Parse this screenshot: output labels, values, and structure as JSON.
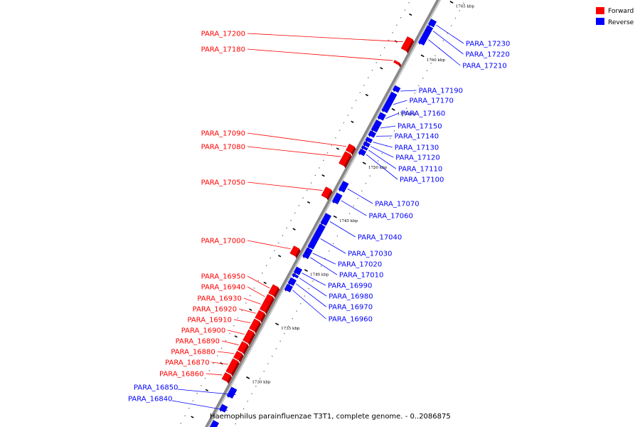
{
  "title": "Haemophilus parainfluenzae T3T1, complete genome. - 0..2086875",
  "legend": [
    {
      "label": "Forward",
      "color": "#ff0000"
    },
    {
      "label": "Reverse",
      "color": "#0000ff"
    }
  ],
  "colors": {
    "forward": "#ff0000",
    "reverse": "#0000ff",
    "backbone": "#888888"
  },
  "ticks": [
    {
      "kbp": 1730,
      "label": "1730 kbp"
    },
    {
      "kbp": 1735,
      "label": "1735 kbp"
    },
    {
      "kbp": 1740,
      "label": "1740 kbp"
    },
    {
      "kbp": 1745,
      "label": "1745 kbp"
    },
    {
      "kbp": 1750,
      "label": "1750 kbp"
    },
    {
      "kbp": 1755,
      "label": "1755 kbp"
    },
    {
      "kbp": 1760,
      "label": "1760 kbp"
    },
    {
      "kbp": 1765,
      "label": "1765 kbp"
    }
  ],
  "genes": [
    {
      "name": "PARA_16840",
      "strand": "reverse",
      "start_kbp": 1726.6,
      "end_kbp": 1727.1
    },
    {
      "name": "PARA_16850",
      "strand": "reverse",
      "start_kbp": 1727.9,
      "end_kbp": 1728.7
    },
    {
      "name": "PARA_16860",
      "strand": "forward",
      "start_kbp": 1728.9,
      "end_kbp": 1729.5
    },
    {
      "name": "PARA_16870",
      "strand": "forward",
      "start_kbp": 1729.6,
      "end_kbp": 1730.8
    },
    {
      "name": "PARA_16880",
      "strand": "forward",
      "start_kbp": 1730.9,
      "end_kbp": 1731.5
    },
    {
      "name": "PARA_16890",
      "strand": "forward",
      "start_kbp": 1731.6,
      "end_kbp": 1732.4
    },
    {
      "name": "PARA_16900",
      "strand": "forward",
      "start_kbp": 1732.5,
      "end_kbp": 1733.5
    },
    {
      "name": "PARA_16910",
      "strand": "forward",
      "start_kbp": 1733.6,
      "end_kbp": 1734.5
    },
    {
      "name": "PARA_16920",
      "strand": "forward",
      "start_kbp": 1734.6,
      "end_kbp": 1735.3
    },
    {
      "name": "PARA_16930",
      "strand": "forward",
      "start_kbp": 1735.4,
      "end_kbp": 1736.2
    },
    {
      "name": "PARA_16940",
      "strand": "forward",
      "start_kbp": 1736.2,
      "end_kbp": 1736.8
    },
    {
      "name": "PARA_16950",
      "strand": "forward",
      "start_kbp": 1736.9,
      "end_kbp": 1737.7
    },
    {
      "name": "PARA_16960",
      "strand": "reverse",
      "start_kbp": 1737.8,
      "end_kbp": 1738.3
    },
    {
      "name": "PARA_16970",
      "strand": "reverse",
      "start_kbp": 1738.4,
      "end_kbp": 1738.9
    },
    {
      "name": "PARA_16980",
      "strand": "reverse",
      "start_kbp": 1739.1,
      "end_kbp": 1739.3
    },
    {
      "name": "PARA_16990",
      "strand": "reverse",
      "start_kbp": 1739.4,
      "end_kbp": 1739.9
    },
    {
      "name": "PARA_17000",
      "strand": "forward",
      "start_kbp": 1740.6,
      "end_kbp": 1741.3
    },
    {
      "name": "PARA_17010",
      "strand": "reverse",
      "start_kbp": 1740.9,
      "end_kbp": 1741.3
    },
    {
      "name": "PARA_17020",
      "strand": "reverse",
      "start_kbp": 1741.3,
      "end_kbp": 1741.7
    },
    {
      "name": "PARA_17030",
      "strand": "reverse",
      "start_kbp": 1741.8,
      "end_kbp": 1743.9
    },
    {
      "name": "PARA_17040",
      "strand": "reverse",
      "start_kbp": 1744.0,
      "end_kbp": 1744.9
    },
    {
      "name": "PARA_17050",
      "strand": "forward",
      "start_kbp": 1746.0,
      "end_kbp": 1746.8
    },
    {
      "name": "PARA_17060",
      "strand": "reverse",
      "start_kbp": 1746.0,
      "end_kbp": 1746.8
    },
    {
      "name": "PARA_17070",
      "strand": "reverse",
      "start_kbp": 1747.1,
      "end_kbp": 1747.9
    },
    {
      "name": "PARA_17080",
      "strand": "forward",
      "start_kbp": 1749.0,
      "end_kbp": 1750.1
    },
    {
      "name": "PARA_17090",
      "strand": "forward",
      "start_kbp": 1750.2,
      "end_kbp": 1750.8
    },
    {
      "name": "PARA_17100",
      "strand": "reverse",
      "start_kbp": 1750.5,
      "end_kbp": 1750.9
    },
    {
      "name": "PARA_17110",
      "strand": "reverse",
      "start_kbp": 1751.0,
      "end_kbp": 1751.2
    },
    {
      "name": "PARA_17120",
      "strand": "reverse",
      "start_kbp": 1751.3,
      "end_kbp": 1751.6
    },
    {
      "name": "PARA_17130",
      "strand": "reverse",
      "start_kbp": 1751.7,
      "end_kbp": 1752.0
    },
    {
      "name": "PARA_17140",
      "strand": "reverse",
      "start_kbp": 1752.2,
      "end_kbp": 1752.6
    },
    {
      "name": "PARA_17150",
      "strand": "reverse",
      "start_kbp": 1752.7,
      "end_kbp": 1753.6
    },
    {
      "name": "PARA_17160",
      "strand": "reverse",
      "start_kbp": 1753.8,
      "end_kbp": 1754.3
    },
    {
      "name": "PARA_17170",
      "strand": "reverse",
      "start_kbp": 1754.5,
      "end_kbp": 1756.2
    },
    {
      "name": "PARA_17180",
      "strand": "forward",
      "start_kbp": 1758.4,
      "end_kbp": 1758.6
    },
    {
      "name": "PARA_17190",
      "strand": "reverse",
      "start_kbp": 1756.4,
      "end_kbp": 1756.8
    },
    {
      "name": "PARA_17200",
      "strand": "forward",
      "start_kbp": 1759.7,
      "end_kbp": 1760.8
    },
    {
      "name": "PARA_17210",
      "strand": "reverse",
      "start_kbp": 1760.8,
      "end_kbp": 1762.0
    },
    {
      "name": "PARA_17220",
      "strand": "reverse",
      "start_kbp": 1762.0,
      "end_kbp": 1762.4
    },
    {
      "name": "PARA_17230",
      "strand": "reverse",
      "start_kbp": 1762.5,
      "end_kbp": 1763.0
    },
    {
      "name": "",
      "strand": "forward",
      "start_kbp": 1765.2,
      "end_kbp": 1766.9
    },
    {
      "name": "",
      "strand": "reverse",
      "start_kbp": 1724.4,
      "end_kbp": 1725.6
    }
  ]
}
